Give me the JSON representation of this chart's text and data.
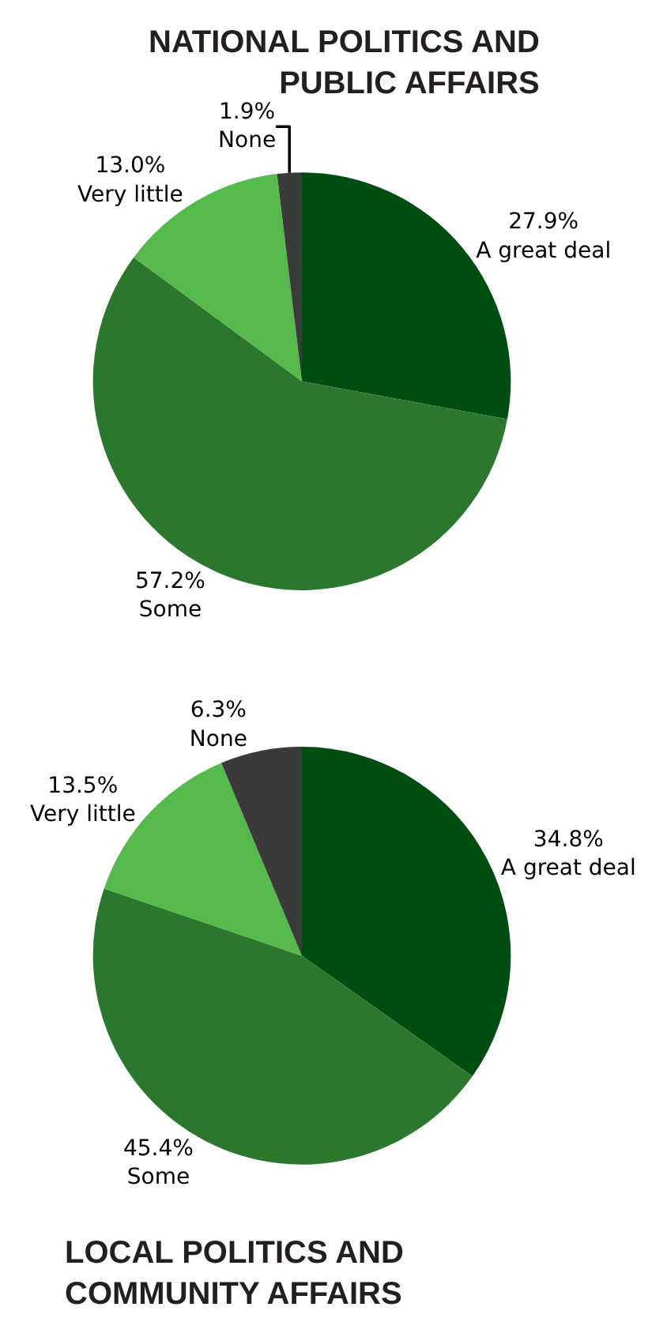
{
  "chart_data": [
    {
      "type": "pie",
      "title": "NATIONAL POLITICS AND\nPUBLIC AFFAIRS",
      "categories": [
        "A great deal",
        "Some",
        "Very little",
        "None"
      ],
      "values": [
        27.9,
        57.2,
        13.0,
        1.9
      ],
      "value_labels": [
        "27.9%",
        "57.2%",
        "13.0%",
        "1.9%"
      ],
      "colors": [
        "#004d12",
        "#2b772d",
        "#55b94b",
        "#3a3a3a"
      ],
      "legend": false
    },
    {
      "type": "pie",
      "title": "LOCAL POLITICS AND\nCOMMUNITY AFFAIRS",
      "categories": [
        "A great deal",
        "Some",
        "Very little",
        "None"
      ],
      "values": [
        34.8,
        45.4,
        13.5,
        6.3
      ],
      "value_labels": [
        "34.8%",
        "45.4%",
        "13.5%",
        "6.3%"
      ],
      "colors": [
        "#004d12",
        "#2b772d",
        "#55b94b",
        "#3a3a3a"
      ],
      "legend": false
    }
  ]
}
